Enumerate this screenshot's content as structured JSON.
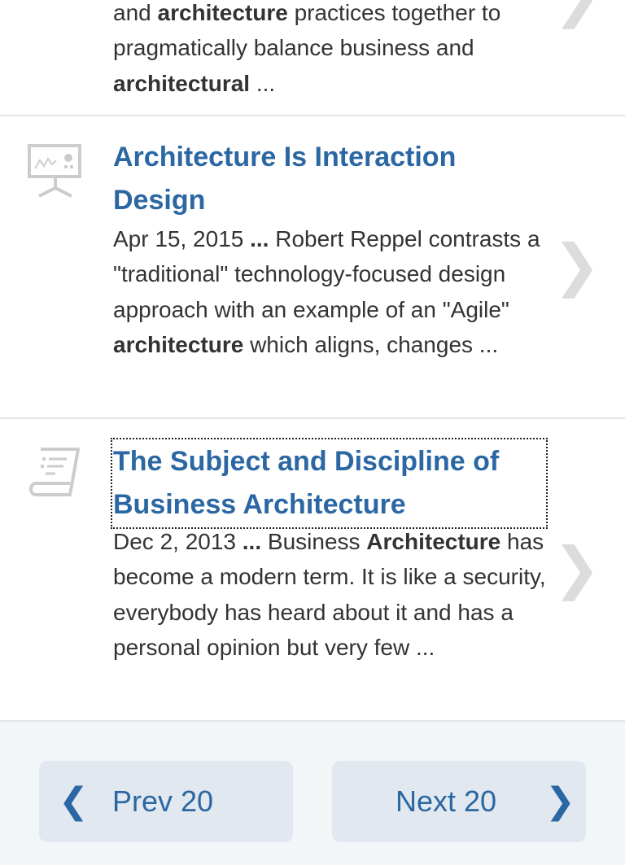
{
  "results": [
    {
      "snippet_pre": "and ",
      "snippet_bold1": "architecture",
      "snippet_mid": " practices together to pragmatically balance business and ",
      "snippet_bold2": "architectural",
      "snippet_post": " ..."
    },
    {
      "icon": "presentation-icon",
      "title_bold": "Architecture",
      "title_rest": " Is Interaction Design",
      "date": "Apr 15, 2015",
      "ellipsis": " ...",
      "snippet_a": " Robert Reppel contrasts a \"traditional\" technology-focused design approach with an example of an \"Agile\" ",
      "snippet_bold": "architecture",
      "snippet_b": " which aligns, changes ..."
    },
    {
      "icon": "document-scroll-icon",
      "title_plain": "The Subject and Discipline of Business ",
      "title_bold": "Architecture",
      "date": "Dec 2, 2013",
      "ellipsis": " ...",
      "snippet_a": " Business ",
      "snippet_bold": "Architecture",
      "snippet_b": " has become a modern term. It is like a security, everybody has heard about it and has a personal opinion but very few ..."
    }
  ],
  "pagination": {
    "prev_arrow": "❮",
    "prev_label": "Prev 20",
    "next_label": "Next 20",
    "next_arrow": "❯"
  },
  "chevron": "❯"
}
